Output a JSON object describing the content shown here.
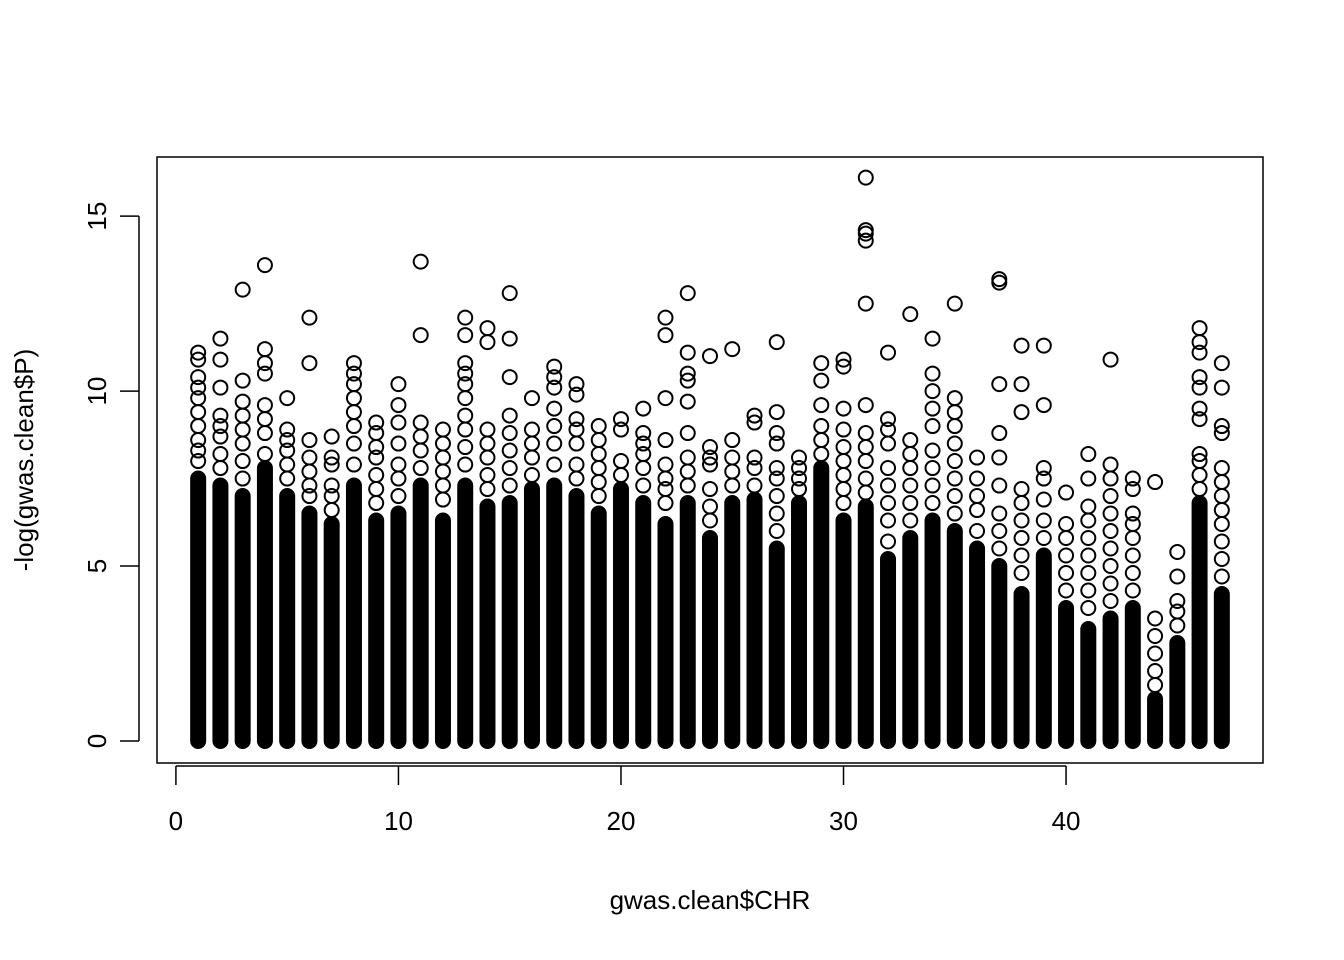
{
  "chart_data": {
    "type": "scatter",
    "x_label": "gwas.clean$CHR",
    "y_label": "-log(gwas.clean$P)",
    "xlim": [
      -0.85,
      48.85
    ],
    "ylim": [
      -0.63,
      16.69
    ],
    "xticks": [
      0,
      10,
      20,
      30,
      40
    ],
    "yticks": [
      0,
      5,
      10,
      15
    ],
    "color": "#000000",
    "columns": [
      {
        "x": 1,
        "dense": [
          0,
          7.5
        ],
        "points": [
          8,
          8.3,
          8.6,
          9,
          9.4,
          9.8,
          10.1,
          10.4,
          10.9,
          11.1
        ]
      },
      {
        "x": 2,
        "dense": [
          0,
          7.3
        ],
        "points": [
          7.8,
          8.2,
          8.7,
          9,
          9.3,
          10.1,
          10.9,
          11.5
        ]
      },
      {
        "x": 3,
        "dense": [
          0,
          7
        ],
        "points": [
          7.5,
          8,
          8.5,
          8.9,
          9.3,
          9.7,
          10.3,
          12.9
        ]
      },
      {
        "x": 4,
        "dense": [
          0,
          7.8
        ],
        "points": [
          8.2,
          8.8,
          9.2,
          9.6,
          10.5,
          10.8,
          11.2,
          13.6
        ]
      },
      {
        "x": 5,
        "dense": [
          0,
          7
        ],
        "points": [
          7.5,
          7.9,
          8.3,
          8.6,
          8.9,
          9.8
        ]
      },
      {
        "x": 6,
        "dense": [
          0,
          6.5
        ],
        "points": [
          7,
          7.3,
          7.7,
          8.1,
          8.6,
          10.8,
          12.1
        ]
      },
      {
        "x": 7,
        "dense": [
          0,
          6.2
        ],
        "points": [
          6.6,
          7,
          7.3,
          7.9,
          8.1,
          8.7
        ]
      },
      {
        "x": 8,
        "dense": [
          0,
          7.3
        ],
        "points": [
          7.9,
          8.5,
          9,
          9.4,
          9.8,
          10.2,
          10.5,
          10.8
        ]
      },
      {
        "x": 9,
        "dense": [
          0,
          6.3
        ],
        "points": [
          6.8,
          7.2,
          7.6,
          8.1,
          8.4,
          8.8,
          9.1
        ]
      },
      {
        "x": 10,
        "dense": [
          0,
          6.5
        ],
        "points": [
          7,
          7.5,
          7.9,
          8.5,
          9.1,
          9.6,
          10.2
        ]
      },
      {
        "x": 11,
        "dense": [
          0,
          7.3
        ],
        "points": [
          7.8,
          8.3,
          8.7,
          9.1,
          11.6,
          13.7
        ]
      },
      {
        "x": 12,
        "dense": [
          0,
          6.3
        ],
        "points": [
          6.9,
          7.3,
          7.7,
          8.1,
          8.5,
          8.9
        ]
      },
      {
        "x": 13,
        "dense": [
          0,
          7.3
        ],
        "points": [
          7.9,
          8.4,
          8.9,
          9.3,
          9.8,
          10.2,
          10.5,
          10.8,
          11.6,
          12.1
        ]
      },
      {
        "x": 14,
        "dense": [
          0,
          6.7
        ],
        "points": [
          7.2,
          7.6,
          8.1,
          8.5,
          8.9,
          11.4,
          11.8
        ]
      },
      {
        "x": 15,
        "dense": [
          0,
          6.8
        ],
        "points": [
          7.3,
          7.8,
          8.3,
          8.8,
          9.3,
          10.4,
          11.5,
          12.8
        ]
      },
      {
        "x": 16,
        "dense": [
          0,
          7.2
        ],
        "points": [
          7.6,
          8.1,
          8.5,
          8.9,
          9.8
        ]
      },
      {
        "x": 17,
        "dense": [
          0,
          7.3
        ],
        "points": [
          7.9,
          8.5,
          9,
          9.5,
          10.1,
          10.4,
          10.7
        ]
      },
      {
        "x": 18,
        "dense": [
          0,
          7
        ],
        "points": [
          7.5,
          7.9,
          8.5,
          8.9,
          9.2,
          9.9,
          10.2
        ]
      },
      {
        "x": 19,
        "dense": [
          0,
          6.5
        ],
        "points": [
          7,
          7.4,
          7.8,
          8.2,
          8.6,
          9
        ]
      },
      {
        "x": 20,
        "dense": [
          0,
          7.2
        ],
        "points": [
          7.6,
          8,
          8.9,
          9.2
        ]
      },
      {
        "x": 21,
        "dense": [
          0,
          6.8
        ],
        "points": [
          7.3,
          7.8,
          8.2,
          8.5,
          8.8,
          9.5
        ]
      },
      {
        "x": 22,
        "dense": [
          0,
          6.2
        ],
        "points": [
          6.8,
          7.2,
          7.5,
          7.9,
          8.6,
          9.8,
          11.6,
          12.1
        ]
      },
      {
        "x": 23,
        "dense": [
          0,
          6.8
        ],
        "points": [
          7.3,
          7.7,
          8.1,
          8.8,
          9.7,
          10.3,
          10.5,
          11.1,
          12.8
        ]
      },
      {
        "x": 24,
        "dense": [
          0,
          5.8
        ],
        "points": [
          6.3,
          6.7,
          7.2,
          7.9,
          8.1,
          8.4,
          11
        ]
      },
      {
        "x": 25,
        "dense": [
          0,
          6.8
        ],
        "points": [
          7.3,
          7.7,
          8.1,
          8.6,
          11.2
        ]
      },
      {
        "x": 26,
        "dense": [
          0,
          6.9
        ],
        "points": [
          7.3,
          7.8,
          8.1,
          9.1,
          9.3
        ]
      },
      {
        "x": 27,
        "dense": [
          0,
          5.5
        ],
        "points": [
          6,
          6.5,
          7,
          7.5,
          7.8,
          8.5,
          8.8,
          9.4,
          11.4
        ]
      },
      {
        "x": 28,
        "dense": [
          0,
          6.8
        ],
        "points": [
          7.2,
          7.5,
          7.8,
          8.1
        ]
      },
      {
        "x": 29,
        "dense": [
          0,
          7.8
        ],
        "points": [
          8.2,
          8.6,
          9,
          9.6,
          10.3,
          10.8
        ]
      },
      {
        "x": 30,
        "dense": [
          0,
          6.3
        ],
        "points": [
          6.8,
          7.2,
          7.6,
          8,
          8.4,
          8.9,
          9.5,
          10.7,
          10.9
        ]
      },
      {
        "x": 31,
        "dense": [
          0,
          6.7
        ],
        "points": [
          7.1,
          7.5,
          8,
          8.4,
          8.8,
          9.6,
          12.5,
          14.3,
          14.5,
          14.6,
          16.1
        ]
      },
      {
        "x": 32,
        "dense": [
          0,
          5.2
        ],
        "points": [
          5.7,
          6.3,
          6.8,
          7.3,
          7.8,
          8.5,
          8.9,
          9.2,
          11.1
        ]
      },
      {
        "x": 33,
        "dense": [
          0,
          5.8
        ],
        "points": [
          6.3,
          6.8,
          7.3,
          7.8,
          8.2,
          8.6,
          12.2
        ]
      },
      {
        "x": 34,
        "dense": [
          0,
          6.3
        ],
        "points": [
          6.8,
          7.3,
          7.8,
          8.3,
          9,
          9.5,
          10,
          10.5,
          11.5
        ]
      },
      {
        "x": 35,
        "dense": [
          0,
          6
        ],
        "points": [
          6.5,
          7,
          7.5,
          8,
          8.5,
          9,
          9.4,
          9.8,
          12.5
        ]
      },
      {
        "x": 36,
        "dense": [
          0,
          5.5
        ],
        "points": [
          6,
          6.6,
          7,
          7.5,
          8.1
        ]
      },
      {
        "x": 37,
        "dense": [
          0,
          5
        ],
        "points": [
          5.5,
          6,
          6.5,
          7.3,
          8.1,
          8.8,
          10.2,
          13.1,
          13.2
        ]
      },
      {
        "x": 38,
        "dense": [
          0,
          4.2
        ],
        "points": [
          4.8,
          5.3,
          5.8,
          6.3,
          6.8,
          7.2,
          9.4,
          10.2,
          11.3
        ]
      },
      {
        "x": 39,
        "dense": [
          0,
          5.3
        ],
        "points": [
          5.8,
          6.3,
          6.9,
          7.5,
          7.8,
          9.6,
          11.3
        ]
      },
      {
        "x": 40,
        "dense": [
          0,
          3.8
        ],
        "points": [
          4.3,
          4.8,
          5.3,
          5.8,
          6.2,
          7.1
        ]
      },
      {
        "x": 41,
        "dense": [
          0,
          3.2
        ],
        "points": [
          3.8,
          4.3,
          4.8,
          5.3,
          5.8,
          6.3,
          6.7,
          7.5,
          8.2
        ]
      },
      {
        "x": 42,
        "dense": [
          0,
          3.5
        ],
        "points": [
          4,
          4.5,
          5,
          5.5,
          6,
          6.5,
          7,
          7.5,
          7.9,
          10.9
        ]
      },
      {
        "x": 43,
        "dense": [
          0,
          3.8
        ],
        "points": [
          4.3,
          4.8,
          5.3,
          5.8,
          6.2,
          6.5,
          7.2,
          7.5
        ]
      },
      {
        "x": 44,
        "dense": [
          0,
          1.2
        ],
        "points": [
          1.6,
          2,
          2.5,
          3,
          3.5,
          7.4
        ]
      },
      {
        "x": 45,
        "dense": [
          0,
          2.8
        ],
        "points": [
          3.3,
          3.7,
          4,
          4.7,
          5.4
        ]
      },
      {
        "x": 46,
        "dense": [
          0,
          6.8
        ],
        "points": [
          7.2,
          7.6,
          8,
          8.2,
          9.2,
          9.5,
          10.1,
          10.4,
          11.1,
          11.4,
          11.8
        ]
      },
      {
        "x": 47,
        "dense": [
          0,
          4.2
        ],
        "points": [
          4.7,
          5.2,
          5.7,
          6.2,
          6.6,
          7,
          7.4,
          7.8,
          8.8,
          9,
          10.1,
          10.8
        ]
      }
    ]
  }
}
